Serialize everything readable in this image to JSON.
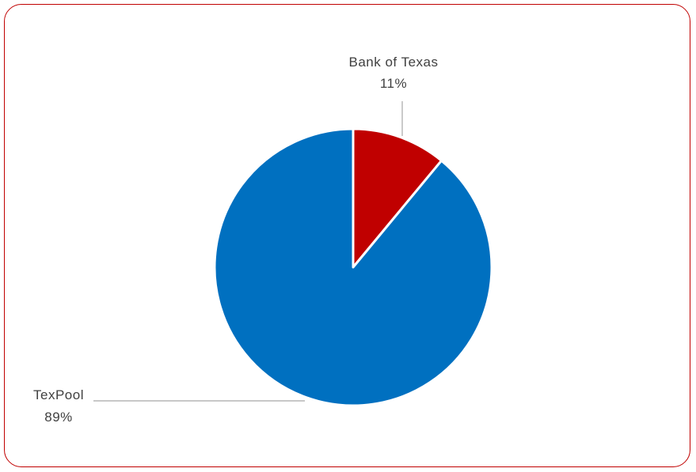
{
  "chart_data": {
    "type": "pie",
    "categories": [
      "Bank of Texas",
      "TexPool"
    ],
    "values": [
      11,
      89
    ],
    "colors": [
      "#c00000",
      "#0070c0"
    ],
    "labels": [
      {
        "name": "Bank of Texas",
        "percent": "11%"
      },
      {
        "name": "TexPool",
        "percent": "89%"
      }
    ],
    "legend": "none",
    "frame_color": "#c00000"
  }
}
